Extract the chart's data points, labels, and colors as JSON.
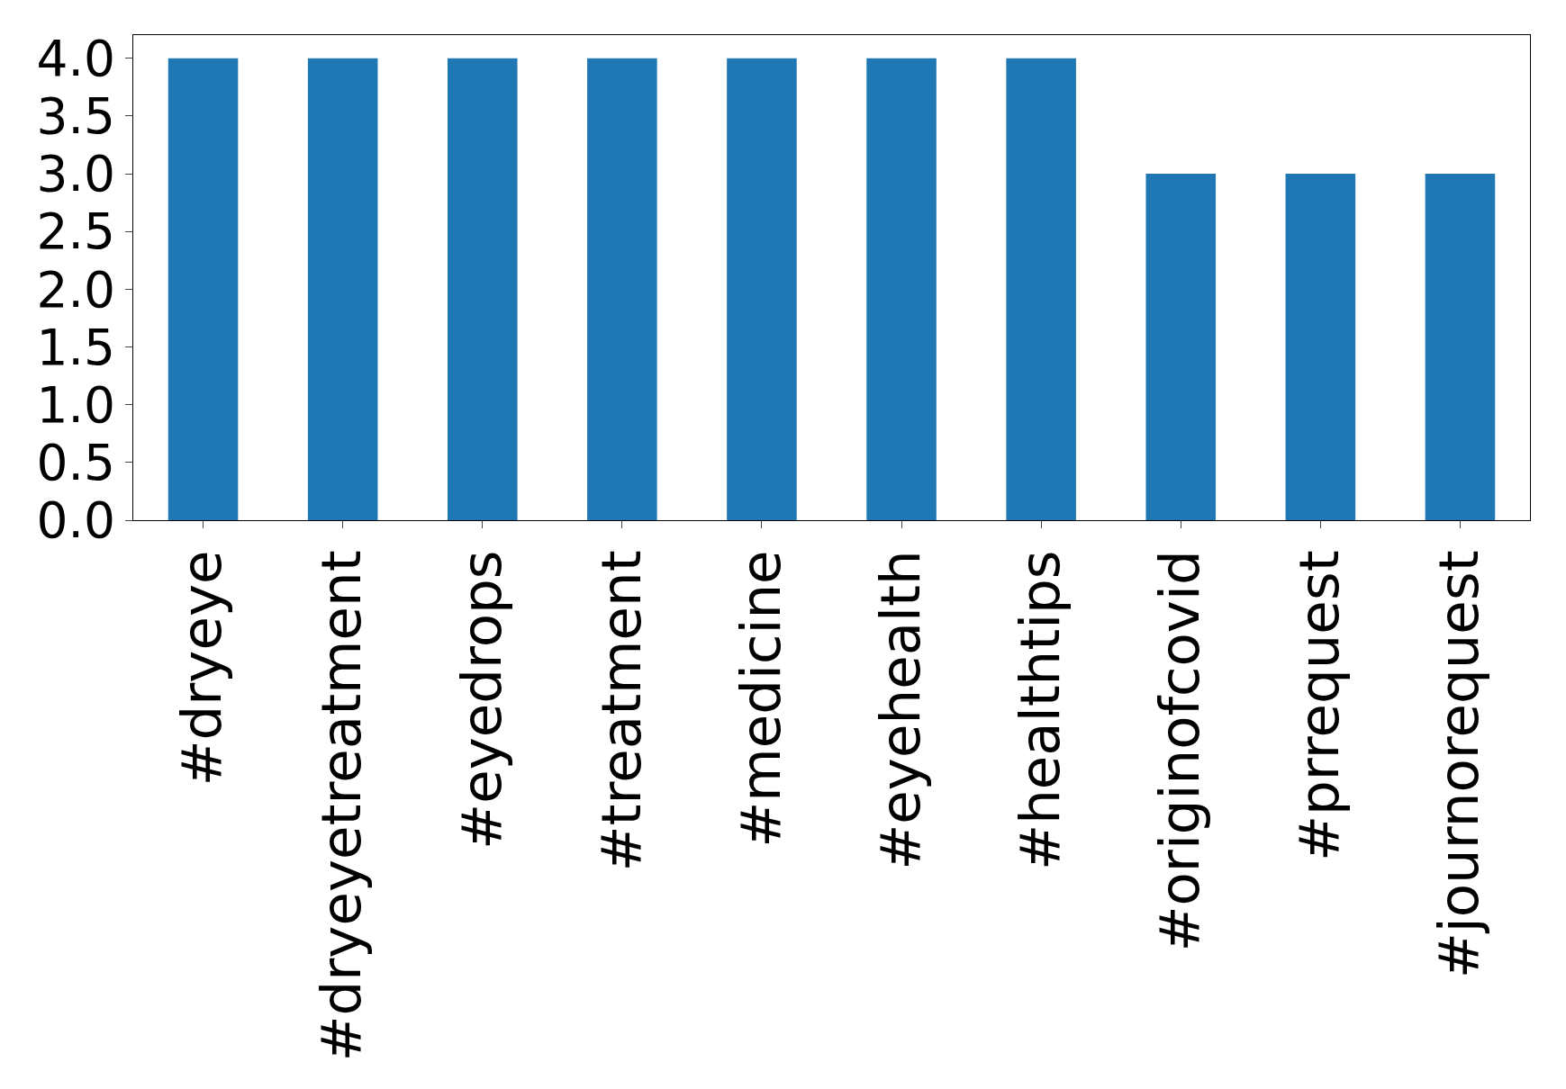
{
  "chart_data": {
    "type": "bar",
    "categories": [
      "#dryeye",
      "#dryeyetreatment",
      "#eyedrops",
      "#treatment",
      "#medicine",
      "#eyehealth",
      "#healthtips",
      "#originofcovid",
      "#prrequest",
      "#journorequest"
    ],
    "values": [
      4,
      4,
      4,
      4,
      4,
      4,
      4,
      3,
      3,
      3
    ],
    "color": "#1f77b4",
    "ylim": [
      0,
      4.2
    ],
    "yticks": [
      {
        "value": 0,
        "label": "0.0"
      },
      {
        "value": 0.5,
        "label": "0.5"
      },
      {
        "value": 1,
        "label": "1.0"
      },
      {
        "value": 1.5,
        "label": "1.5"
      },
      {
        "value": 2,
        "label": "2.0"
      },
      {
        "value": 2.5,
        "label": "2.5"
      },
      {
        "value": 3,
        "label": "3.0"
      },
      {
        "value": 3.5,
        "label": "3.5"
      },
      {
        "value": 4,
        "label": "4.0"
      }
    ],
    "grid": false
  }
}
